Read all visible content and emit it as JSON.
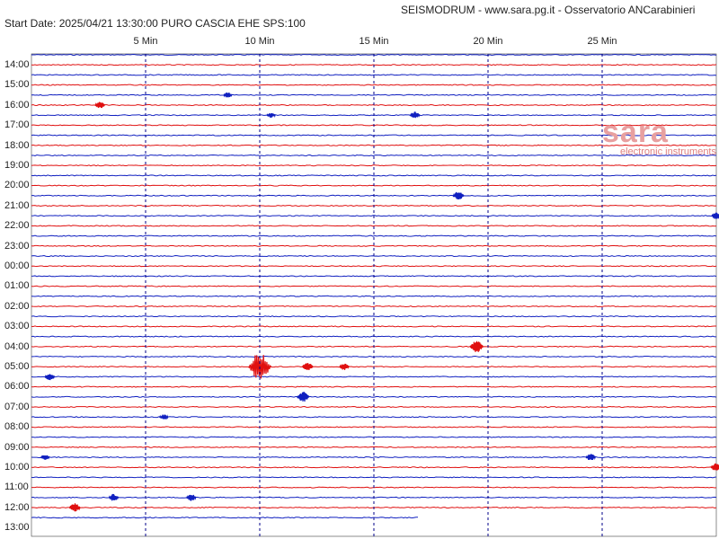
{
  "header": {
    "title": "SEISMODRUM - www.sara.pg.it - Osservatorio ANCarabinieri",
    "start_info": "Start Date: 2025/04/21 13:30:00 PURO CASCIA  EHE  SPS:100"
  },
  "logos": {
    "sara": "sara",
    "sara_sub": "electronic instruments"
  },
  "colors": {
    "blue": "#1020c0",
    "red": "#e01010",
    "grid": "#000088"
  },
  "chart_data": {
    "type": "line",
    "title": "",
    "xlabel": "",
    "ylabel": "",
    "x_ticks": [
      {
        "min": 5,
        "label": "5 Min"
      },
      {
        "min": 10,
        "label": "10 Min"
      },
      {
        "min": 15,
        "label": "15 Min"
      },
      {
        "min": 20,
        "label": "20 Min"
      },
      {
        "min": 25,
        "label": "25 Min"
      }
    ],
    "xlim_minutes": [
      0,
      30
    ],
    "y_labels": [
      "14:00",
      "15:00",
      "16:00",
      "17:00",
      "18:00",
      "19:00",
      "20:00",
      "21:00",
      "22:00",
      "23:00",
      "00:00",
      "01:00",
      "02:00",
      "03:00",
      "04:00",
      "05:00",
      "06:00",
      "07:00",
      "08:00",
      "09:00",
      "10:00",
      "11:00",
      "12:00",
      "13:00"
    ],
    "trace_count": 47,
    "last_trace_end_minute": 17,
    "events": [
      {
        "trace": 4,
        "min": 8.6,
        "amp": 3
      },
      {
        "trace": 5,
        "min": 3.0,
        "amp": 4
      },
      {
        "trace": 6,
        "min": 10.5,
        "amp": 3
      },
      {
        "trace": 6,
        "min": 16.8,
        "amp": 4
      },
      {
        "trace": 14,
        "min": 18.7,
        "amp": 5
      },
      {
        "trace": 16,
        "min": 30.0,
        "amp": 4
      },
      {
        "trace": 29,
        "min": 19.5,
        "amp": 7
      },
      {
        "trace": 31,
        "min": 10.0,
        "amp": 16
      },
      {
        "trace": 31,
        "min": 12.1,
        "amp": 5
      },
      {
        "trace": 31,
        "min": 13.7,
        "amp": 4
      },
      {
        "trace": 32,
        "min": 0.8,
        "amp": 4
      },
      {
        "trace": 34,
        "min": 11.9,
        "amp": 6
      },
      {
        "trace": 36,
        "min": 5.8,
        "amp": 3
      },
      {
        "trace": 40,
        "min": 0.6,
        "amp": 3
      },
      {
        "trace": 40,
        "min": 24.5,
        "amp": 4
      },
      {
        "trace": 41,
        "min": 30.0,
        "amp": 5
      },
      {
        "trace": 44,
        "min": 3.6,
        "amp": 4
      },
      {
        "trace": 44,
        "min": 7.0,
        "amp": 4
      },
      {
        "trace": 45,
        "min": 1.9,
        "amp": 5
      }
    ]
  }
}
